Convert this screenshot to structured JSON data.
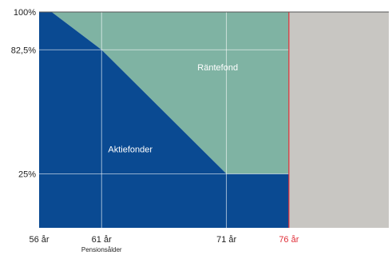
{
  "chart_data": {
    "type": "area",
    "title": "",
    "xlabel": "",
    "ylabel": "",
    "x_ticks": [
      {
        "label": "56 år",
        "value": 56,
        "color": "#222222"
      },
      {
        "label": "61 år",
        "value": 61,
        "color": "#222222",
        "sublabel": "Pensionsålder"
      },
      {
        "label": "71 år",
        "value": 71,
        "color": "#222222"
      },
      {
        "label": "76 år",
        "value": 76,
        "color": "#e0303a"
      }
    ],
    "y_ticks": [
      {
        "label": "100%",
        "value": 100
      },
      {
        "label": "82,5%",
        "value": 82.5
      },
      {
        "label": "25%",
        "value": 25
      }
    ],
    "xlim": [
      56,
      84
    ],
    "ylim": [
      0,
      100
    ],
    "series": [
      {
        "name": "Aktiefonder",
        "color": "#0a4a92",
        "x": [
          56,
          57,
          61,
          71,
          76
        ],
        "y": [
          100,
          100,
          82.5,
          25,
          25
        ]
      },
      {
        "name": "Räntefond",
        "color": "#7fb3a3",
        "x": [
          56,
          57,
          61,
          71,
          76
        ],
        "y": [
          0,
          0,
          17.5,
          75,
          75
        ]
      }
    ],
    "after_end_fill_color": "#c8c6c2",
    "end_line_color": "#e0303a",
    "grid_color": "#ffffff"
  }
}
